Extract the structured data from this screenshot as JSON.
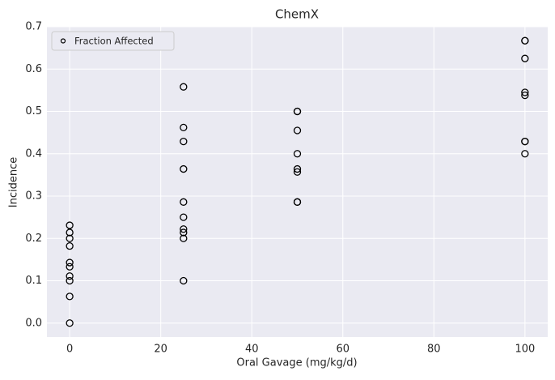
{
  "chart_data": {
    "type": "scatter",
    "title": "ChemX",
    "x_label": "Oral Gavage (mg/kg/d)",
    "y_label": "Incidence",
    "series": [
      {
        "name": "Fraction Affected",
        "color": "#000000",
        "x": [
          0,
          0,
          0,
          0,
          0,
          0,
          0,
          0,
          0,
          0,
          25,
          25,
          25,
          25,
          25,
          25,
          25,
          25,
          25,
          25,
          50,
          50,
          50,
          50,
          50,
          50,
          50,
          50,
          100,
          100,
          100,
          100,
          100,
          100,
          100,
          100
        ],
        "values": [
          0.231,
          0.214,
          0.2,
          0.182,
          0.143,
          0.133,
          0.111,
          0.1,
          0.063,
          0,
          0.558,
          0.462,
          0.429,
          0.364,
          0.286,
          0.25,
          0.222,
          0.214,
          0.2,
          0.1,
          0.5,
          0.5,
          0.455,
          0.4,
          0.364,
          0.357,
          0.286,
          0.286,
          0.667,
          0.667,
          0.625,
          0.545,
          0.538,
          0.429,
          0.429,
          0.4
        ]
      }
    ],
    "xlim": [
      -5,
      105
    ],
    "ylim": [
      -0.033,
      0.7
    ],
    "xticks": [
      0,
      20,
      40,
      60,
      80,
      100
    ],
    "yticks": [
      {
        "value": 0,
        "label": "0.0"
      },
      0.1,
      0.2,
      0.3,
      0.4,
      0.5,
      0.6,
      0.7
    ],
    "grid": true,
    "legend": "upper left"
  }
}
